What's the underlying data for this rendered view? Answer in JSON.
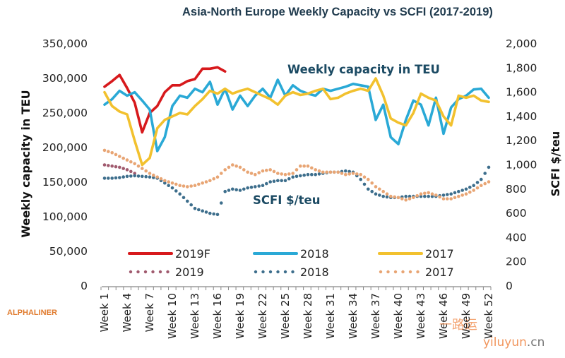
{
  "chart_data": {
    "type": "line",
    "title": "Asia-North Europe Weekly Capacity vs SCFI  (2017-2019)",
    "xlabel": "",
    "ylabel": "Weekly capacity in TEU",
    "y2label": "SCFI $/teu",
    "ylim": [
      0,
      350000
    ],
    "y2lim": [
      0,
      2000
    ],
    "grid": false,
    "yticks": [
      "0",
      "50,000",
      "100,000",
      "150,000",
      "200,000",
      "250,000",
      "300,000",
      "350,000"
    ],
    "y2ticks": [
      "0",
      "200",
      "400",
      "600",
      "800",
      "1,000",
      "1,200",
      "1,400",
      "1,600",
      "1,800",
      "2,000"
    ],
    "xtick_labels": [
      "Week 1",
      "Week 4",
      "Week 7",
      "Week 10",
      "Week 13",
      "Week 16",
      "Week 19",
      "Week 22",
      "Week 25",
      "Week 28",
      "Week 31",
      "Week 34",
      "Week 37",
      "Week 40",
      "Week 43",
      "Week 46",
      "Week 49",
      "Week 52"
    ],
    "x": [
      1,
      2,
      3,
      4,
      5,
      6,
      7,
      8,
      9,
      10,
      11,
      12,
      13,
      14,
      15,
      16,
      17,
      18,
      19,
      20,
      21,
      22,
      23,
      24,
      25,
      26,
      27,
      28,
      29,
      30,
      31,
      32,
      33,
      34,
      35,
      36,
      37,
      38,
      39,
      40,
      41,
      42,
      43,
      44,
      45,
      46,
      47,
      48,
      49,
      50,
      51,
      52
    ],
    "annotations": [
      "Weekly capacity in TEU",
      "SCFI $/teu"
    ],
    "legend_position": "bottom",
    "series": [
      {
        "name": "2019F",
        "axis": "left",
        "style": "solid",
        "color": "#d7191c",
        "values": [
          288000,
          296000,
          305000,
          286000,
          265000,
          222000,
          250000,
          260000,
          280000,
          290000,
          290000,
          296000,
          299000,
          314000,
          314000,
          316000,
          310000
        ]
      },
      {
        "name": "2018",
        "axis": "left",
        "style": "solid",
        "color": "#2aa9d6",
        "values": [
          262000,
          270000,
          282000,
          275000,
          280000,
          268000,
          255000,
          195000,
          215000,
          260000,
          275000,
          272000,
          285000,
          280000,
          295000,
          262000,
          285000,
          255000,
          275000,
          260000,
          275000,
          285000,
          272000,
          298000,
          275000,
          290000,
          282000,
          278000,
          275000,
          285000,
          282000,
          285000,
          288000,
          292000,
          290000,
          288000,
          240000,
          262000,
          215000,
          205000,
          240000,
          268000,
          262000,
          232000,
          272000,
          220000,
          258000,
          270000,
          275000,
          284000,
          285000,
          272000
        ]
      },
      {
        "name": "2017",
        "axis": "left",
        "style": "solid",
        "color": "#f2c12e",
        "values": [
          280000,
          260000,
          252000,
          248000,
          210000,
          175000,
          185000,
          228000,
          240000,
          245000,
          250000,
          248000,
          260000,
          270000,
          282000,
          278000,
          285000,
          278000,
          282000,
          285000,
          280000,
          275000,
          270000,
          262000,
          275000,
          280000,
          276000,
          278000,
          282000,
          285000,
          270000,
          272000,
          278000,
          282000,
          285000,
          282000,
          300000,
          275000,
          242000,
          236000,
          232000,
          250000,
          278000,
          272000,
          268000,
          245000,
          232000,
          275000,
          272000,
          275000,
          268000,
          266000
        ]
      },
      {
        "name": "2019",
        "axis": "right",
        "style": "dotted",
        "color": "#a05a6e",
        "values": [
          1000,
          990,
          980,
          960,
          930
        ]
      },
      {
        "name": "2018",
        "axis": "right",
        "style": "dotted",
        "color": "#3d6e8c",
        "values": [
          890,
          890,
          895,
          905,
          910,
          905,
          900,
          890,
          850,
          810,
          760,
          700,
          640,
          620,
          600,
          590,
          780,
          800,
          790,
          810,
          820,
          830,
          860,
          870,
          870,
          900,
          910,
          920,
          920,
          930,
          940,
          940,
          950,
          940,
          880,
          800,
          760,
          740,
          730,
          730,
          740,
          740,
          740,
          740,
          740,
          750,
          760,
          780,
          800,
          830,
          880,
          980
        ]
      },
      {
        "name": "2017",
        "axis": "right",
        "style": "dotted",
        "color": "#e8a574",
        "values": [
          1120,
          1100,
          1070,
          1040,
          1010,
          970,
          930,
          900,
          870,
          850,
          830,
          820,
          830,
          850,
          870,
          900,
          960,
          1000,
          980,
          940,
          920,
          950,
          960,
          930,
          920,
          930,
          990,
          990,
          960,
          940,
          940,
          940,
          920,
          930,
          920,
          880,
          820,
          780,
          740,
          730,
          710,
          730,
          760,
          770,
          750,
          720,
          720,
          740,
          760,
          790,
          830,
          860
        ]
      }
    ]
  },
  "branding": {
    "source_logo": "ALPHALINER",
    "watermark_cn": "一路运",
    "watermark_url_part1": "yiluyun",
    "watermark_url_part2": ".cn"
  }
}
